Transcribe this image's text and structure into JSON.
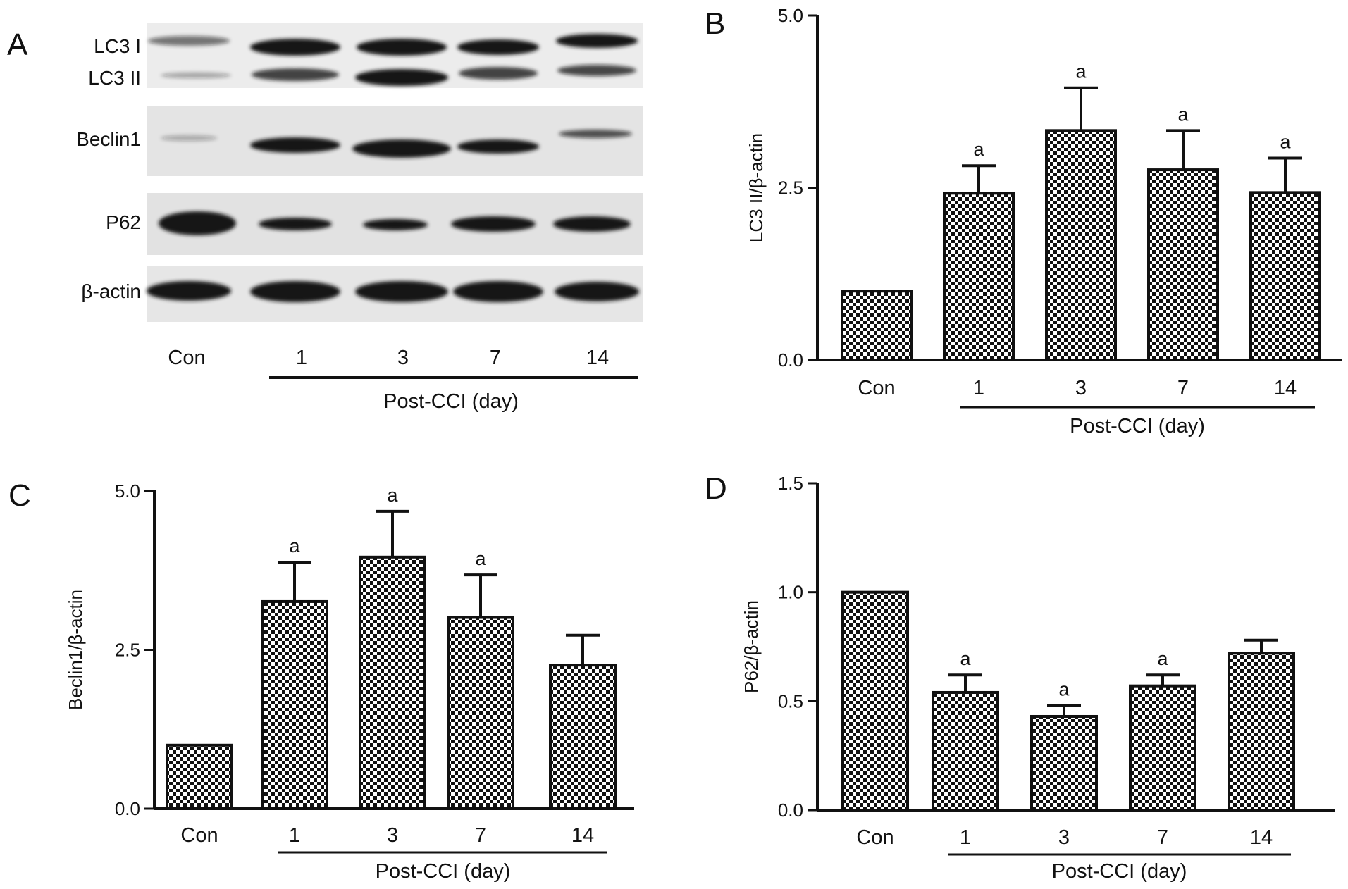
{
  "colors": {
    "ink": "#111111",
    "background": "#ffffff",
    "blot_background": "#e6e6e6",
    "band": "#161616",
    "bar_pattern": "checkerboard black/white"
  },
  "panel_A": {
    "letter": "A",
    "blots": [
      {
        "labels": [
          "LC3 I",
          "LC3 II"
        ]
      },
      {
        "labels": [
          "Beclin1"
        ]
      },
      {
        "labels": [
          "P62"
        ]
      },
      {
        "labels": [
          "β-actin"
        ]
      }
    ],
    "lanes": [
      "Con",
      "1",
      "3",
      "7",
      "14"
    ],
    "group_label": "Post-CCI (day)"
  },
  "chart_data": [
    {
      "panel": "B",
      "type": "bar",
      "categories": [
        "Con",
        "1",
        "3",
        "7",
        "14"
      ],
      "values": [
        1.0,
        2.42,
        3.33,
        2.76,
        2.43
      ],
      "errors": [
        0.0,
        0.4,
        0.62,
        0.57,
        0.5
      ],
      "significance": [
        "",
        "a",
        "a",
        "a",
        "a"
      ],
      "ylabel": "LC3 II/β-actin",
      "ylim": [
        0,
        5.0
      ],
      "yticks": [
        "0.0",
        "2.5",
        "5.0"
      ],
      "group_label": "Post-CCI (day)"
    },
    {
      "panel": "C",
      "type": "bar",
      "categories": [
        "Con",
        "1",
        "3",
        "7",
        "14"
      ],
      "values": [
        1.0,
        3.26,
        3.96,
        3.01,
        2.26
      ],
      "errors": [
        0.0,
        0.62,
        0.72,
        0.67,
        0.47
      ],
      "significance": [
        "",
        "a",
        "a",
        "a",
        ""
      ],
      "ylabel": "Beclin1/β-actin",
      "ylim": [
        0,
        5.0
      ],
      "yticks": [
        "0.0",
        "2.5",
        "5.0"
      ],
      "group_label": "Post-CCI (day)"
    },
    {
      "panel": "D",
      "type": "bar",
      "categories": [
        "Con",
        "1",
        "3",
        "7",
        "14"
      ],
      "values": [
        1.0,
        0.54,
        0.43,
        0.57,
        0.72
      ],
      "errors": [
        0.0,
        0.08,
        0.05,
        0.05,
        0.06
      ],
      "significance": [
        "",
        "a",
        "a",
        "a",
        ""
      ],
      "ylabel": "P62/β-actin",
      "ylim": [
        0,
        1.5
      ],
      "yticks": [
        "0.0",
        "0.5",
        "1.0",
        "1.5"
      ],
      "group_label": "Post-CCI (day)"
    }
  ]
}
